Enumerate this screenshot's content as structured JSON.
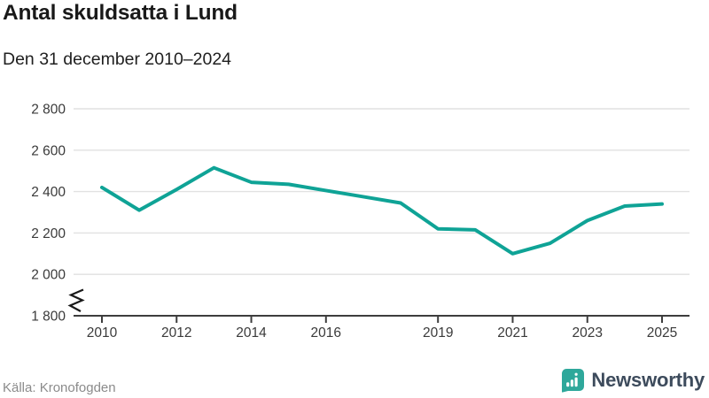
{
  "header": {
    "title": "Antal skuldsatta i Lund",
    "subtitle": "Den 31 december 2010–2024"
  },
  "footer": {
    "source": "Källa: Kronofogden",
    "brand": "Newsworthy"
  },
  "colors": {
    "line": "#0fa396",
    "brand_teal": "#2ea89b",
    "brand_text": "#3d4b5c",
    "grid": "#e1e1e1",
    "axis": "#3d3d3d",
    "axis_text": "#3a3a3a",
    "source_text": "#8b8b8b"
  },
  "chart_data": {
    "type": "line",
    "title": "Antal skuldsatta i Lund",
    "subtitle": "Den 31 december 2010–2024",
    "source": "Källa: Kronofogden",
    "x": [
      2010,
      2011,
      2012,
      2013,
      2014,
      2015,
      2016,
      2017,
      2018,
      2019,
      2020,
      2021,
      2022,
      2023,
      2024,
      2025
    ],
    "values": [
      2420,
      2310,
      2410,
      2515,
      2445,
      2435,
      2405,
      2375,
      2345,
      2220,
      2215,
      2100,
      2150,
      2260,
      2330,
      2340
    ],
    "x_tick_years": [
      2010,
      2012,
      2014,
      2016,
      2019,
      2021,
      2023,
      2025
    ],
    "x_tick_labels": [
      "2010",
      "2012",
      "2014",
      "2016",
      "2019",
      "2021",
      "2023",
      "2025"
    ],
    "y_ticks": [
      1800,
      2000,
      2200,
      2400,
      2600,
      2800
    ],
    "y_tick_labels": [
      "1 800",
      "2 000",
      "2 200",
      "2 400",
      "2 600",
      "2 800"
    ],
    "ylim": [
      1800,
      2800
    ],
    "grid": "horizontal-only",
    "axis_break": true,
    "legend": "none",
    "line_color": "#0fa396"
  }
}
